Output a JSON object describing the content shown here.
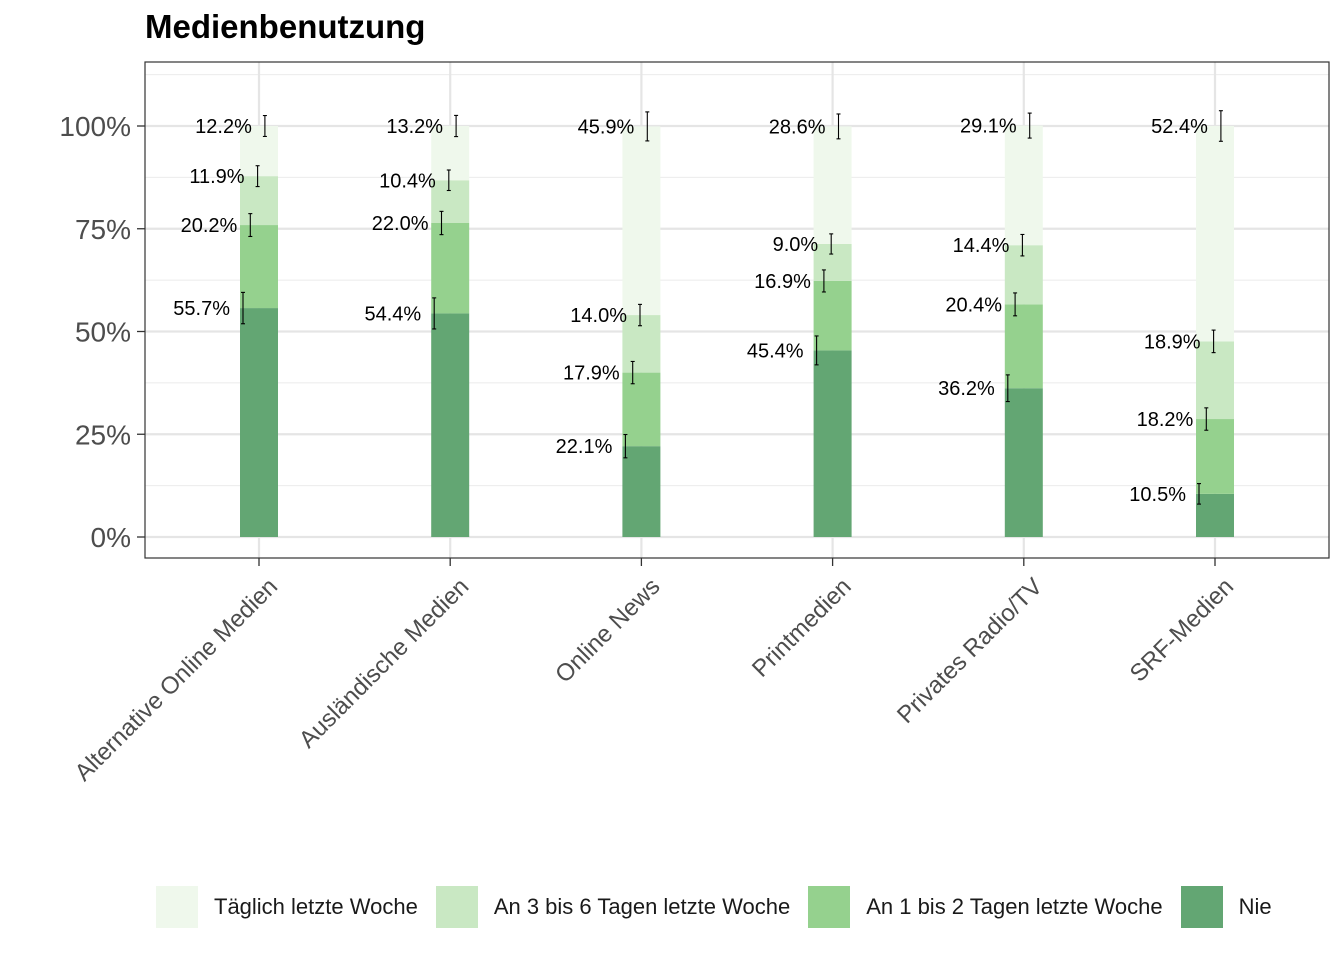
{
  "chart_data": {
    "type": "bar",
    "stacked": true,
    "title": "Medienbenutzung",
    "xlabel": "",
    "ylabel": "",
    "ylim": [
      -0.05,
      1.15
    ],
    "yticks": [
      0,
      0.25,
      0.5,
      0.75,
      1.0
    ],
    "ytick_labels": [
      "0%",
      "25%",
      "50%",
      "75%",
      "100%"
    ],
    "grid": true,
    "legend_position": "bottom",
    "categories": [
      "Alternative Online Medien",
      "Ausländische Medien",
      "Online News",
      "Printmedien",
      "Privates Radio/TV",
      "SRF-Medien"
    ],
    "series": [
      {
        "name": "Nie",
        "color": "#63a673",
        "values": [
          0.557,
          0.544,
          0.221,
          0.454,
          0.362,
          0.105
        ],
        "labels": [
          "55.7%",
          "54.4%",
          "22.1%",
          "45.4%",
          "36.2%",
          "10.5%"
        ]
      },
      {
        "name": "An 1 bis 2 Tagen letzte Woche",
        "color": "#95d18e",
        "values": [
          0.202,
          0.22,
          0.179,
          0.169,
          0.204,
          0.182
        ],
        "labels": [
          "20.2%",
          "22.0%",
          "17.9%",
          "16.9%",
          "20.4%",
          "18.2%"
        ]
      },
      {
        "name": "An 3 bis 6 Tagen letzte Woche",
        "color": "#c9e8c3",
        "values": [
          0.119,
          0.104,
          0.14,
          0.09,
          0.144,
          0.189
        ],
        "labels": [
          "11.9%",
          "10.4%",
          "14.0%",
          "9.0%",
          "14.4%",
          "18.9%"
        ]
      },
      {
        "name": "Täglich letzte Woche",
        "color": "#eff8ec",
        "values": [
          0.122,
          0.132,
          0.459,
          0.286,
          0.291,
          0.524
        ],
        "labels": [
          "12.2%",
          "13.2%",
          "45.9%",
          "28.6%",
          "29.1%",
          "52.4%"
        ]
      }
    ]
  },
  "legend": {
    "items": [
      {
        "label": "Täglich letzte Woche",
        "color": "#eff8ec"
      },
      {
        "label": "An 3 bis 6 Tagen letzte Woche",
        "color": "#c9e8c3"
      },
      {
        "label": "An 1 bis 2 Tagen letzte Woche",
        "color": "#95d18e"
      },
      {
        "label": "Nie",
        "color": "#63a673"
      }
    ]
  }
}
